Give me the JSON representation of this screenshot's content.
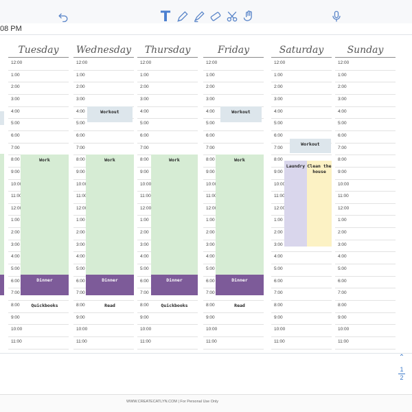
{
  "toolbar": {
    "tools": [
      {
        "name": "undo-icon"
      },
      {
        "name": "text-tool-icon",
        "label": "T"
      },
      {
        "name": "pen-icon"
      },
      {
        "name": "highlighter-icon"
      },
      {
        "name": "eraser-icon"
      },
      {
        "name": "scissors-icon"
      },
      {
        "name": "hand-icon"
      },
      {
        "name": "microphone-icon"
      }
    ],
    "accent": "#5b86c9"
  },
  "header": {
    "time_fragment": "08 PM"
  },
  "planner": {
    "days": [
      "Tuesday",
      "Wednesday",
      "Thursday",
      "Friday",
      "Saturday",
      "Sunday"
    ],
    "hours": [
      "12:00",
      "1:00",
      "2:00",
      "3:00",
      "4:00",
      "5:00",
      "6:00",
      "7:00",
      "8:00",
      "9:00",
      "10:00",
      "11:00",
      "12:00",
      "1:00",
      "2:00",
      "3:00",
      "4:00",
      "5:00",
      "6:00",
      "7:00",
      "8:00",
      "9:00",
      "10:00",
      "11:00"
    ],
    "events": {
      "workout": "Workout",
      "work": "Work",
      "dinner": "Dinner",
      "quickbooks": "Quickbooks",
      "read": "Read",
      "laundry": "Laundry",
      "clean": "Clean the house"
    },
    "colors": {
      "work": "#d6ecd4",
      "workout": "#dde6ec",
      "dinner": "#7d5b99",
      "laundry": "#d9d6ec",
      "clean": "#fcf2c4"
    }
  },
  "nav": {
    "up": "^",
    "page_current": "1",
    "page_total": "2"
  },
  "footer": {
    "text": "WWW.CREATECATLYN.COM | For Personal Use Only"
  }
}
